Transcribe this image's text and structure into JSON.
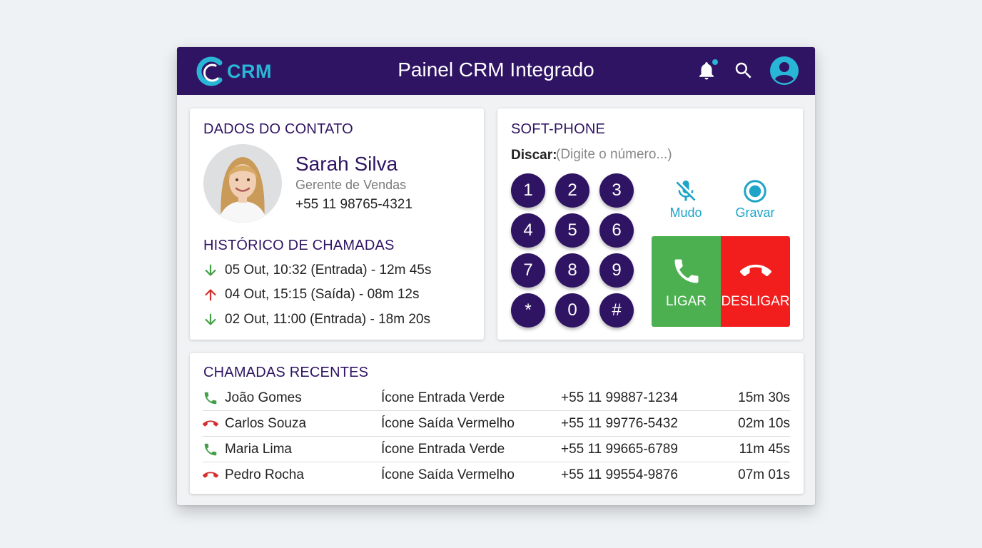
{
  "header": {
    "logo_text": "CRM",
    "title": "Painel CRM Integrado",
    "notification_dot_color": "#29b6d6",
    "icons": [
      "bell-icon",
      "search-icon",
      "user-avatar-icon"
    ]
  },
  "contact": {
    "section_title": "DADOS DO CONTATO",
    "name": "Sarah Silva",
    "role": "Gerente de Vendas",
    "phone": "+55 11 98765-4321"
  },
  "history": {
    "section_title": "HISTÓRICO DE CHAMADAS",
    "items": [
      {
        "direction": "in",
        "icon": "arrow-down-icon",
        "text": "05 Out, 10:32 (Entrada) - 12m 45s"
      },
      {
        "direction": "out",
        "icon": "arrow-up-icon",
        "text": "04 Out, 15:15 (Saída) - 08m 12s"
      },
      {
        "direction": "in",
        "icon": "arrow-down-icon",
        "text": "02 Out, 11:00 (Entrada) - 18m 20s"
      }
    ]
  },
  "softphone": {
    "section_title": "SOFT-PHONE",
    "dial_label": "Discar:",
    "dial_placeholder": "(Digite o número...)",
    "keys": [
      "1",
      "2",
      "3",
      "4",
      "5",
      "6",
      "7",
      "8",
      "9",
      "*",
      "0",
      "#"
    ],
    "mute_label": "Mudo",
    "record_label": "Gravar",
    "call_label": "LIGAR",
    "hangup_label": "DESLIGAR"
  },
  "recent": {
    "section_title": "CHAMADAS RECENTES",
    "rows": [
      {
        "direction": "in",
        "name": "João Gomes",
        "type": "Ícone Entrada Verde",
        "phone": "+55 11 99887-1234",
        "duration": "15m 30s"
      },
      {
        "direction": "out",
        "name": "Carlos Souza",
        "type": "Ícone Saída Vermelho",
        "phone": "+55 11 99776-5432",
        "duration": "02m 10s"
      },
      {
        "direction": "in",
        "name": "Maria Lima",
        "type": "Ícone Entrada Verde",
        "phone": "+55 11 99665-6789",
        "duration": "11m 45s"
      },
      {
        "direction": "out",
        "name": "Pedro Rocha",
        "type": "Ícone Saída Vermelho",
        "phone": "+55 11 99554-9876",
        "duration": "07m 01s"
      }
    ]
  },
  "colors": {
    "primary": "#2f1463",
    "accent": "#29b6d6",
    "incoming": "#43a047",
    "outgoing": "#d32f2f",
    "call": "#4caf50",
    "hangup": "#f21d1d"
  }
}
